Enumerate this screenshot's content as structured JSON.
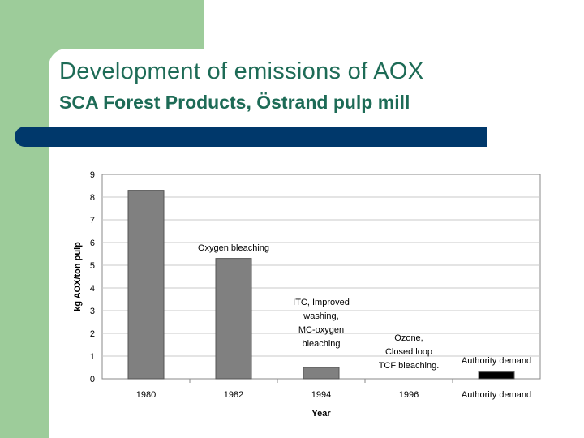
{
  "slide": {
    "title": "Development of emissions of AOX",
    "subtitle": "SCA Forest Products, Östrand pulp mill",
    "colors": {
      "green": "#9dcc9a",
      "title_text": "#1d6b56",
      "rule": "#00386b"
    }
  },
  "chart_data": {
    "type": "bar",
    "title": "",
    "xlabel": "Year",
    "ylabel": "kg AOX/ton pulp",
    "ylim": [
      0,
      9
    ],
    "yticks": [
      "0",
      "1",
      "2",
      "3",
      "4",
      "5",
      "6",
      "7",
      "8",
      "9"
    ],
    "categories": [
      "1980",
      "1982",
      "1994",
      "1996",
      "Authority demand"
    ],
    "values": [
      8.3,
      5.3,
      0.5,
      0,
      0.3
    ],
    "bar_colors": [
      "#808080",
      "#808080",
      "#808080",
      "#808080",
      "#000000"
    ],
    "grid": true,
    "annotations": [
      {
        "category": "1982",
        "lines": [
          "Oxygen bleaching"
        ]
      },
      {
        "category": "1994",
        "lines": [
          "ITC, Improved",
          "washing,",
          "MC-oxygen",
          "bleaching"
        ]
      },
      {
        "category": "1996",
        "lines": [
          "Ozone,",
          "Closed loop",
          "TCF bleaching."
        ]
      },
      {
        "category": "Authority demand",
        "lines": [
          "Authority demand"
        ]
      }
    ]
  }
}
